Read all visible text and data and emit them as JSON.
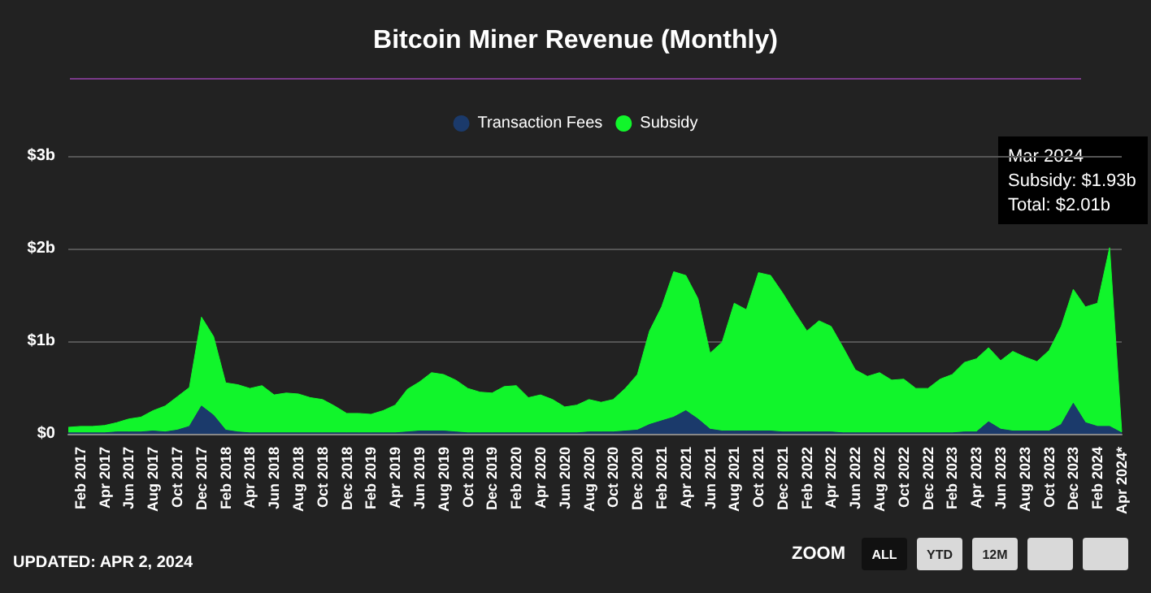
{
  "chart_data": {
    "type": "area",
    "title": "Bitcoin Miner Revenue (Monthly)",
    "stacked": true,
    "categories": [
      null,
      "Feb 2017",
      null,
      "Apr 2017",
      null,
      "Jun 2017",
      null,
      "Aug 2017",
      null,
      "Oct 2017",
      null,
      "Dec 2017",
      null,
      "Feb 2018",
      null,
      "Apr 2018",
      null,
      "Jun 2018",
      null,
      "Aug 2018",
      null,
      "Oct 2018",
      null,
      "Dec 2018",
      null,
      "Feb 2019",
      null,
      "Apr 2019",
      null,
      "Jun 2019",
      null,
      "Aug 2019",
      null,
      "Oct 2019",
      null,
      "Dec 2019",
      null,
      "Feb 2020",
      null,
      "Apr 2020",
      null,
      "Jun 2020",
      null,
      "Aug 2020",
      null,
      "Oct 2020",
      null,
      "Dec 2020",
      null,
      "Feb 2021",
      null,
      "Apr 2021",
      null,
      "Jun 2021",
      null,
      "Aug 2021",
      null,
      "Oct 2021",
      null,
      "Dec 2021",
      null,
      "Feb 2022",
      null,
      "Apr 2022",
      null,
      "Jun 2022",
      null,
      "Aug 2022",
      null,
      "Oct 2022",
      null,
      "Dec 2022",
      null,
      "Feb 2023",
      null,
      "Apr 2023",
      null,
      "Jun 2023",
      null,
      "Aug 2023",
      null,
      "Oct 2023",
      null,
      "Dec 2023",
      null,
      "Feb 2024",
      null,
      "Apr 2024*"
    ],
    "series": [
      {
        "name": "Transaction Fees",
        "color": "#1b3a6b",
        "values": [
          0.01,
          0.01,
          0.01,
          0.01,
          0.02,
          0.02,
          0.02,
          0.03,
          0.02,
          0.04,
          0.08,
          0.3,
          0.2,
          0.04,
          0.02,
          0.01,
          0.01,
          0.01,
          0.01,
          0.01,
          0.01,
          0.01,
          0.01,
          0.01,
          0.01,
          0.01,
          0.01,
          0.01,
          0.02,
          0.03,
          0.03,
          0.03,
          0.02,
          0.01,
          0.01,
          0.01,
          0.01,
          0.01,
          0.01,
          0.01,
          0.01,
          0.01,
          0.01,
          0.02,
          0.02,
          0.02,
          0.03,
          0.04,
          0.1,
          0.14,
          0.18,
          0.25,
          0.16,
          0.05,
          0.03,
          0.03,
          0.03,
          0.03,
          0.03,
          0.02,
          0.02,
          0.02,
          0.02,
          0.02,
          0.01,
          0.01,
          0.01,
          0.01,
          0.01,
          0.01,
          0.01,
          0.01,
          0.01,
          0.01,
          0.02,
          0.02,
          0.13,
          0.05,
          0.03,
          0.03,
          0.03,
          0.03,
          0.1,
          0.33,
          0.12,
          0.08,
          0.08,
          0.01
        ]
      },
      {
        "name": "Subsidy",
        "color": "#11f52b",
        "values": [
          0.06,
          0.07,
          0.07,
          0.08,
          0.1,
          0.14,
          0.16,
          0.22,
          0.28,
          0.36,
          0.42,
          0.96,
          0.85,
          0.51,
          0.51,
          0.48,
          0.51,
          0.41,
          0.43,
          0.42,
          0.38,
          0.36,
          0.29,
          0.21,
          0.21,
          0.2,
          0.24,
          0.3,
          0.46,
          0.53,
          0.63,
          0.61,
          0.56,
          0.48,
          0.44,
          0.43,
          0.5,
          0.51,
          0.38,
          0.41,
          0.36,
          0.28,
          0.3,
          0.35,
          0.32,
          0.35,
          0.46,
          0.6,
          1.01,
          1.23,
          1.57,
          1.46,
          1.3,
          0.82,
          0.96,
          1.38,
          1.31,
          1.71,
          1.68,
          1.5,
          1.29,
          1.09,
          1.2,
          1.14,
          0.92,
          0.68,
          0.61,
          0.65,
          0.57,
          0.58,
          0.48,
          0.48,
          0.58,
          0.63,
          0.75,
          0.79,
          0.8,
          0.74,
          0.86,
          0.8,
          0.75,
          0.87,
          1.06,
          1.23,
          1.25,
          1.33,
          1.93,
          0.01
        ]
      }
    ],
    "ylim": [
      0,
      3
    ],
    "yticks": [
      {
        "value": 0,
        "label": "$0"
      },
      {
        "value": 1,
        "label": "$1b"
      },
      {
        "value": 2,
        "label": "$2b"
      },
      {
        "value": 3,
        "label": "$3b"
      }
    ],
    "grid": "y",
    "legend": "top",
    "marker": "none",
    "annotations": [
      "Mar 2024\nSubsidy: $1.93b\nTotal: $2.01b",
      "UPDATED: APR 2, 2024",
      "ZOOM",
      "ALL",
      "YTD",
      "12M"
    ]
  }
}
